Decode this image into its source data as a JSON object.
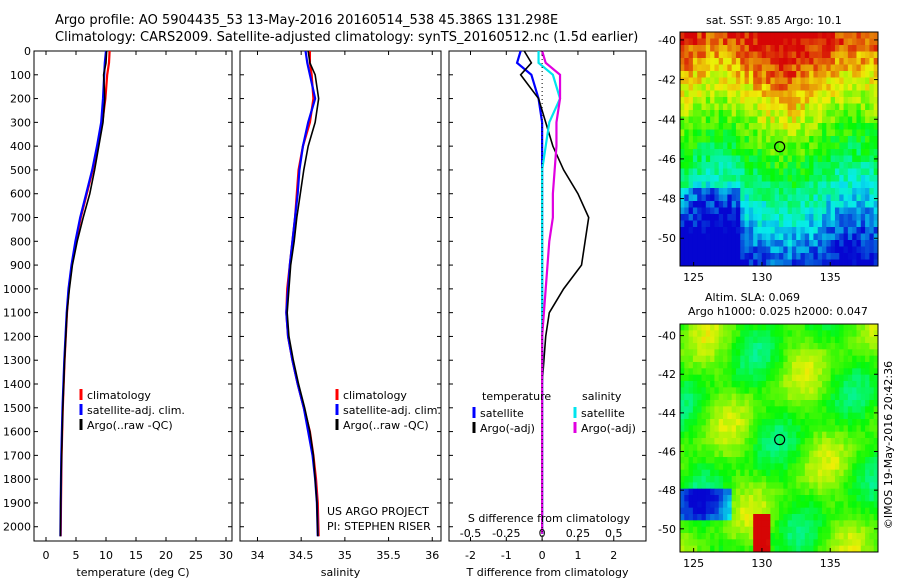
{
  "header": {
    "line1": "Argo profile: AO 5904435_53 13-May-2016 20160514_538 45.386S 131.298E",
    "line2": "Climatology: CARS2009. Satellite-adjusted climatology: synTS_20160512.nc (1.5d earlier)"
  },
  "colors": {
    "climatology": "#ff0000",
    "satellite": "#0000ff",
    "argo": "#000000",
    "sal_sat": "#00e5ee",
    "sal_argo": "#e000e0"
  },
  "chart_data": [
    {
      "type": "line",
      "id": "temperature",
      "xlabel": "temperature (deg C)",
      "ylabel": "depth",
      "xlim": [
        -2,
        31
      ],
      "ylim": [
        2060,
        0
      ],
      "xticks": [
        0,
        5,
        10,
        15,
        20,
        25,
        30
      ],
      "yticks": [
        0,
        100,
        200,
        300,
        400,
        500,
        600,
        700,
        800,
        900,
        1000,
        1100,
        1200,
        1300,
        1400,
        1500,
        1600,
        1700,
        1800,
        1900,
        2000
      ],
      "legend": [
        "climatology",
        "satellite-adj. clim.",
        "Argo(..raw -QC)"
      ],
      "series": [
        {
          "name": "climatology",
          "color": "climatology",
          "x": [
            10.6,
            10.5,
            10.2,
            9.9,
            9.4,
            8.6,
            7.8,
            6.8,
            5.8,
            5.0,
            4.3,
            3.8,
            3.5,
            3.3,
            3.1,
            2.95,
            2.8,
            2.7,
            2.6,
            2.55,
            2.5,
            2.45
          ],
          "y": [
            0,
            50,
            100,
            200,
            300,
            400,
            500,
            600,
            700,
            800,
            900,
            1000,
            1100,
            1200,
            1300,
            1400,
            1500,
            1600,
            1700,
            1800,
            1900,
            2040
          ]
        },
        {
          "name": "satellite-adj. clim.",
          "color": "satellite",
          "x": [
            10.0,
            9.8,
            9.7,
            9.5,
            9.2,
            8.5,
            7.7,
            6.7,
            5.7,
            4.9,
            4.25,
            3.75,
            3.45,
            3.25,
            3.05,
            2.9,
            2.75,
            2.65,
            2.55,
            2.5,
            2.45,
            2.4
          ],
          "y": [
            0,
            50,
            100,
            200,
            300,
            400,
            500,
            600,
            700,
            800,
            900,
            1000,
            1100,
            1200,
            1300,
            1400,
            1500,
            1600,
            1700,
            1800,
            1900,
            2040
          ]
        },
        {
          "name": "Argo(..raw -QC)",
          "color": "argo",
          "x": [
            10.1,
            10.0,
            9.6,
            9.8,
            9.5,
            8.8,
            8.1,
            7.3,
            6.2,
            5.2,
            4.4,
            3.9,
            3.5,
            3.3,
            3.1,
            2.95,
            2.8,
            2.7,
            2.6,
            2.5,
            2.45,
            2.4
          ],
          "y": [
            0,
            50,
            100,
            200,
            300,
            400,
            500,
            600,
            700,
            800,
            900,
            1000,
            1100,
            1200,
            1300,
            1400,
            1500,
            1600,
            1700,
            1800,
            1900,
            2040
          ]
        }
      ]
    },
    {
      "type": "line",
      "id": "salinity",
      "xlabel": "salinity",
      "ylabel": "depth",
      "xlim": [
        33.8,
        36.1
      ],
      "ylim": [
        2060,
        0
      ],
      "xticks": [
        34,
        34.5,
        35,
        35.5,
        36
      ],
      "legend": [
        "climatology",
        "satellite-adj. clim.",
        "Argo(..raw -QC)"
      ],
      "annotations": [
        "US ARGO PROJECT",
        "PI: STEPHEN RISER"
      ],
      "series": [
        {
          "name": "climatology",
          "color": "climatology",
          "x": [
            34.6,
            34.6,
            34.62,
            34.64,
            34.6,
            34.52,
            34.47,
            34.45,
            34.43,
            34.4,
            34.37,
            34.34,
            34.33,
            34.35,
            34.4,
            34.46,
            34.53,
            34.6,
            34.64,
            34.67,
            34.69,
            34.7
          ],
          "y": [
            0,
            50,
            100,
            200,
            300,
            400,
            500,
            600,
            700,
            800,
            900,
            1000,
            1100,
            1200,
            1300,
            1400,
            1500,
            1600,
            1700,
            1800,
            1900,
            2040
          ]
        },
        {
          "name": "satellite-adj. clim.",
          "color": "satellite",
          "x": [
            34.55,
            34.57,
            34.6,
            34.66,
            34.58,
            34.52,
            34.48,
            34.46,
            34.43,
            34.4,
            34.37,
            34.35,
            34.33,
            34.35,
            34.4,
            34.46,
            34.53,
            34.58,
            34.63,
            34.66,
            34.68,
            34.69
          ],
          "y": [
            0,
            50,
            100,
            200,
            300,
            400,
            500,
            600,
            700,
            800,
            900,
            1000,
            1100,
            1200,
            1300,
            1400,
            1500,
            1600,
            1700,
            1800,
            1900,
            2040
          ]
        },
        {
          "name": "Argo(..raw -QC)",
          "color": "argo",
          "x": [
            34.58,
            34.6,
            34.66,
            34.7,
            34.66,
            34.58,
            34.53,
            34.49,
            34.45,
            34.42,
            34.38,
            34.36,
            34.34,
            34.36,
            34.41,
            34.47,
            34.54,
            34.6,
            34.64,
            34.66,
            34.68,
            34.69
          ],
          "y": [
            0,
            50,
            100,
            200,
            300,
            400,
            500,
            600,
            700,
            800,
            900,
            1000,
            1100,
            1200,
            1300,
            1400,
            1500,
            1600,
            1700,
            1800,
            1900,
            2040
          ]
        }
      ]
    },
    {
      "type": "line",
      "id": "difference",
      "xlabel": "T difference from climatology",
      "xlabel2": "S difference from climatology",
      "xlim": [
        -2.6,
        2.9
      ],
      "ylim": [
        2060,
        0
      ],
      "xticks": [
        -2,
        -1,
        0,
        1,
        2
      ],
      "xticks_S": [
        "-0.5",
        "-0.25",
        "0",
        "0.25",
        "0.5"
      ],
      "legend_temperature": {
        "title": "temperature",
        "items": [
          "satellite",
          "Argo(-adj)"
        ]
      },
      "legend_salinity": {
        "title": "salinity",
        "items": [
          "satellite",
          "Argo(-adj)"
        ]
      },
      "series": [
        {
          "name": "temperature satellite",
          "color": "satellite",
          "x": [
            -0.6,
            -0.7,
            -0.3,
            -0.1,
            0.0,
            0.0,
            0.0,
            0.0,
            0.0,
            0.0,
            0.0,
            0.0,
            0.0,
            0.0,
            0.0,
            0.0,
            0.0,
            0.0,
            0.0,
            0.0,
            0.0
          ],
          "y": [
            0,
            50,
            100,
            200,
            300,
            400,
            500,
            600,
            700,
            800,
            900,
            1000,
            1100,
            1200,
            1300,
            1400,
            1500,
            1600,
            1700,
            1800,
            2030
          ]
        },
        {
          "name": "temperature Argo(-adj)",
          "color": "argo",
          "x": [
            -0.5,
            -0.3,
            -0.6,
            -0.1,
            0.1,
            0.3,
            0.6,
            1.0,
            1.3,
            1.2,
            1.1,
            0.6,
            0.2,
            0.1,
            0.05,
            0.0,
            0.0,
            0.0,
            0.0,
            0.0,
            0.0
          ],
          "y": [
            0,
            50,
            100,
            200,
            300,
            400,
            500,
            600,
            700,
            800,
            900,
            1000,
            1100,
            1200,
            1300,
            1400,
            1500,
            1600,
            1700,
            1800,
            2030
          ]
        },
        {
          "name": "salinity satellite",
          "color": "sal_sat",
          "x": [
            -0.1,
            -0.1,
            0.3,
            0.5,
            0.2,
            0.1,
            0.0,
            0.0,
            0.0,
            0.0,
            0.0,
            0.0,
            0.0,
            0.0,
            0.0,
            0.0,
            0.0,
            0.0,
            0.0,
            0.0,
            0.0
          ],
          "y": [
            0,
            50,
            100,
            200,
            300,
            400,
            500,
            600,
            700,
            800,
            900,
            1000,
            1100,
            1200,
            1300,
            1400,
            1500,
            1600,
            1700,
            1800,
            2030
          ]
        },
        {
          "name": "salinity Argo(-adj)",
          "color": "sal_argo",
          "x": [
            0.0,
            0.1,
            0.5,
            0.5,
            0.4,
            0.4,
            0.35,
            0.3,
            0.3,
            0.2,
            0.15,
            0.1,
            0.05,
            0.0,
            0.0,
            0.0,
            0.0,
            0.0,
            0.0,
            0.0,
            0.0
          ],
          "y": [
            0,
            50,
            100,
            200,
            300,
            400,
            500,
            600,
            700,
            800,
            900,
            1000,
            1100,
            1200,
            1300,
            1400,
            1500,
            1600,
            1700,
            1800,
            2030
          ]
        }
      ]
    },
    {
      "type": "heatmap",
      "id": "sst-map",
      "title": "sat. SST: 9.85 Argo: 10.1",
      "xlim": [
        124,
        138.5
      ],
      "ylim": [
        -51.4,
        -39.6
      ],
      "xticks": [
        125,
        130,
        135
      ],
      "yticks": [
        -40,
        -42,
        -44,
        -46,
        -48,
        -50
      ],
      "marker": {
        "lon": 131.298,
        "lat": -45.386
      }
    },
    {
      "type": "heatmap",
      "id": "sla-map",
      "title": "Altim. SLA: 0.069",
      "subtitle": "Argo h1000: 0.025 h2000: 0.047",
      "xlim": [
        124,
        138.5
      ],
      "ylim": [
        -51.2,
        -39.4
      ],
      "xticks": [
        125,
        130,
        135
      ],
      "yticks": [
        -40,
        -42,
        -44,
        -46,
        -48,
        -50
      ],
      "marker": {
        "lon": 131.298,
        "lat": -45.386
      }
    }
  ],
  "footer": {
    "credit": "©IMOS 19-May-2016 20:42:36"
  }
}
